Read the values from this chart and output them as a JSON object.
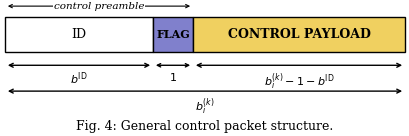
{
  "fig_width": 4.1,
  "fig_height": 1.36,
  "dpi": 100,
  "bg_color": "#ffffff",
  "id_color": "#ffffff",
  "flag_color": "#8080cc",
  "payload_color": "#f0d060",
  "edge_color": "#000000",
  "text_color": "#000000",
  "caption": "Fig. 4: General control packet structure.",
  "id_label": "ID",
  "flag_label": "FLAG",
  "payload_label": "CONTROL PAYLOAD",
  "preamble_label": "control preamble",
  "label_bID": "$b^{\\mathrm{ID}}$",
  "label_1": "$1$",
  "label_payload_dim": "$b_i^{(k)} - 1 - b^{\\mathrm{ID}}$",
  "label_total": "$b_i^{(k)}$"
}
